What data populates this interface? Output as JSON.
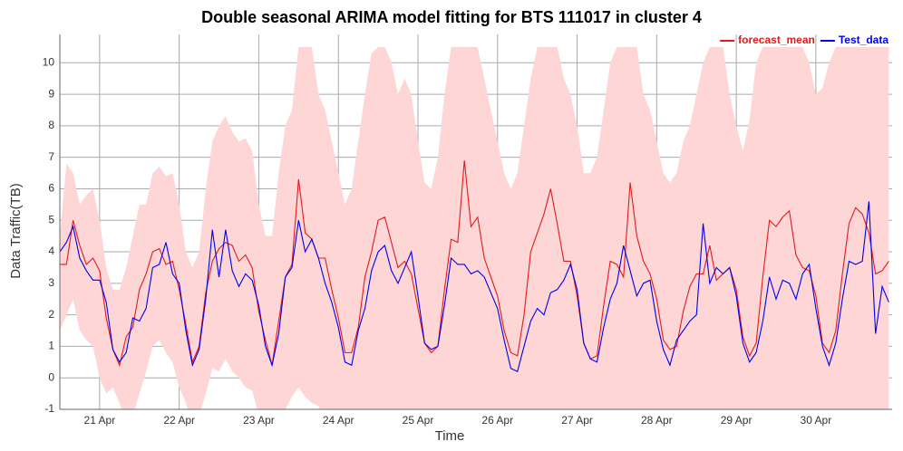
{
  "chart_data": {
    "type": "line",
    "title": "Double seasonal ARIMA model fitting for BTS 111017 in cluster 4",
    "x_label": "Time",
    "y_label": "Data Traffic(TB)",
    "x": [
      12,
      14,
      16,
      18,
      20,
      22,
      24,
      26,
      28,
      30,
      32,
      34,
      36,
      38,
      40,
      42,
      44,
      46,
      48,
      50,
      52,
      54,
      56,
      58,
      60,
      62,
      64,
      66,
      68,
      70,
      72,
      74,
      76,
      78,
      80,
      82,
      84,
      86,
      88,
      90,
      92,
      94,
      96,
      98,
      100,
      102,
      104,
      106,
      108,
      110,
      112,
      114,
      116,
      118,
      120,
      122,
      124,
      126,
      128,
      130,
      132,
      134,
      136,
      138,
      140,
      142,
      144,
      146,
      148,
      150,
      152,
      154,
      156,
      158,
      160,
      162,
      164,
      166,
      168,
      170,
      172,
      174,
      176,
      178,
      180,
      182,
      184,
      186,
      188,
      190,
      192,
      194,
      196,
      198,
      200,
      202,
      204,
      206,
      208,
      210,
      212,
      214,
      216,
      218,
      220,
      222,
      224,
      226,
      228,
      230,
      232,
      234,
      236,
      238,
      240,
      242,
      244,
      246,
      248,
      250,
      252,
      254,
      256,
      258,
      260,
      262
    ],
    "series": [
      {
        "name": "forecast_mean",
        "color": "#e31a1c",
        "values": [
          3.6,
          3.6,
          5.0,
          4.2,
          3.6,
          3.8,
          3.4,
          1.9,
          0.9,
          0.4,
          1.3,
          1.6,
          2.8,
          3.3,
          4.0,
          4.1,
          3.6,
          3.7,
          2.8,
          1.7,
          0.5,
          1.0,
          2.7,
          3.7,
          4.1,
          4.3,
          4.2,
          3.7,
          3.9,
          3.5,
          2.1,
          1.2,
          0.4,
          1.8,
          3.2,
          3.6,
          6.3,
          4.6,
          4.4,
          3.8,
          3.8,
          2.8,
          1.9,
          0.8,
          0.8,
          1.6,
          3.2,
          4.0,
          5.0,
          5.1,
          4.3,
          3.5,
          3.7,
          3.3,
          2.2,
          1.1,
          0.8,
          1.0,
          2.8,
          4.4,
          4.3,
          6.9,
          4.8,
          5.1,
          3.8,
          3.2,
          2.6,
          1.5,
          0.8,
          0.7,
          2.0,
          4.0,
          4.6,
          5.2,
          6.0,
          4.9,
          3.7,
          3.7,
          2.6,
          1.1,
          0.6,
          0.7,
          2.3,
          3.7,
          3.6,
          3.2,
          6.2,
          4.5,
          3.7,
          3.3,
          2.5,
          1.2,
          0.9,
          1.0,
          2.1,
          2.9,
          3.3,
          3.3,
          4.2,
          3.1,
          3.3,
          3.5,
          2.8,
          1.3,
          0.7,
          1.1,
          3.2,
          5.0,
          4.8,
          5.1,
          5.3,
          3.9,
          3.5,
          3.4,
          2.6,
          1.1,
          0.8,
          1.5,
          3.3,
          4.9,
          5.4,
          5.2,
          4.6,
          3.3,
          3.4,
          3.7
        ]
      },
      {
        "name": "Test_data",
        "color": "#0000ee",
        "values": [
          4.0,
          4.3,
          4.8,
          3.8,
          3.4,
          3.1,
          3.1,
          2.4,
          0.9,
          0.5,
          0.8,
          1.9,
          1.8,
          2.2,
          3.5,
          3.6,
          4.3,
          3.3,
          3.0,
          1.5,
          0.4,
          0.9,
          2.5,
          4.7,
          3.2,
          4.7,
          3.4,
          2.9,
          3.3,
          3.1,
          2.3,
          1.0,
          0.4,
          1.4,
          3.2,
          3.5,
          5.0,
          4.0,
          4.4,
          3.8,
          3.0,
          2.4,
          1.6,
          0.5,
          0.4,
          1.5,
          2.2,
          3.4,
          4.0,
          4.2,
          3.4,
          3.0,
          3.5,
          4.0,
          2.6,
          1.1,
          0.9,
          1.0,
          2.3,
          3.8,
          3.6,
          3.6,
          3.3,
          3.4,
          3.2,
          2.7,
          2.2,
          1.2,
          0.3,
          0.2,
          1.0,
          1.8,
          2.2,
          2.0,
          2.7,
          2.8,
          3.1,
          3.6,
          2.8,
          1.1,
          0.6,
          0.5,
          1.6,
          2.5,
          3.0,
          4.2,
          3.4,
          2.6,
          3.0,
          3.1,
          1.8,
          0.9,
          0.4,
          1.2,
          1.5,
          1.8,
          2.0,
          4.9,
          3.0,
          3.5,
          3.3,
          3.5,
          2.6,
          1.1,
          0.5,
          0.8,
          1.8,
          3.2,
          2.5,
          3.1,
          3.0,
          2.5,
          3.3,
          3.6,
          2.2,
          1.0,
          0.4,
          1.1,
          2.5,
          3.7,
          3.6,
          3.7,
          5.6,
          1.4,
          2.9,
          2.4
        ]
      }
    ],
    "band": {
      "color": "#ffd6d6",
      "upper": [
        4.5,
        6.8,
        6.5,
        5.5,
        5.8,
        6.0,
        5.0,
        3.5,
        2.8,
        2.8,
        3.5,
        4.5,
        5.5,
        5.5,
        6.5,
        6.7,
        6.4,
        6.5,
        5.5,
        4.0,
        3.5,
        4.0,
        6.0,
        7.5,
        8.0,
        8.3,
        7.8,
        7.5,
        7.6,
        7.2,
        5.5,
        4.5,
        4.5,
        6.5,
        8.0,
        8.5,
        10.5,
        10.5,
        10.5,
        9.0,
        8.5,
        7.5,
        6.5,
        5.5,
        6.0,
        7.5,
        9.0,
        10.3,
        10.5,
        10.5,
        10.0,
        9.0,
        9.5,
        9.0,
        7.5,
        6.2,
        6.0,
        7.0,
        9.0,
        10.5,
        10.5,
        10.5,
        10.5,
        10.5,
        9.5,
        8.5,
        7.5,
        6.5,
        6.0,
        6.5,
        8.0,
        9.5,
        10.5,
        10.5,
        10.5,
        10.5,
        9.5,
        9.0,
        8.0,
        6.5,
        6.5,
        7.0,
        8.5,
        10.0,
        10.5,
        10.5,
        10.5,
        10.5,
        9.0,
        8.5,
        7.5,
        6.5,
        6.2,
        6.5,
        7.5,
        8.0,
        9.0,
        10.0,
        10.5,
        10.5,
        10.5,
        9.0,
        8.0,
        7.2,
        8.2,
        10.0,
        10.5,
        10.5,
        10.5,
        10.5,
        10.5,
        10.5,
        10.5,
        10.0,
        9.0,
        9.2,
        10.0,
        10.5,
        10.5,
        10.5,
        10.5,
        10.5,
        10.5,
        10.5,
        10.5,
        10.5
      ],
      "lower": [
        1.5,
        2.0,
        2.5,
        1.5,
        1.2,
        1.0,
        0.0,
        -0.5,
        -0.3,
        -0.8,
        -1.5,
        -1.2,
        -0.5,
        0.2,
        1.0,
        1.2,
        0.8,
        0.5,
        -0.3,
        -0.8,
        -1.5,
        -1.2,
        -0.5,
        0.3,
        0.2,
        0.6,
        0.2,
        0.0,
        -0.3,
        -0.4,
        -1.2,
        -1.8,
        -2.0,
        -1.5,
        -1.0,
        -0.6,
        -0.3,
        -0.6,
        -0.8,
        -0.9,
        -1.3,
        -1.8,
        -2.0,
        -2.0,
        -2.0,
        -2.0,
        -2.0,
        -2.0,
        -2.0,
        -2.0,
        -2.0,
        -2.0,
        -2.0,
        -2.0,
        -2.0,
        -2.0,
        -2.0,
        -2.0,
        -2.0,
        -2.0,
        -2.0,
        -2.0,
        -2.0,
        -2.0,
        -2.0,
        -2.0,
        -2.0,
        -2.0,
        -2.0,
        -2.0,
        -2.0,
        -2.0,
        -2.0,
        -2.0,
        -2.0,
        -2.0,
        -2.0,
        -2.0,
        -2.0,
        -2.0,
        -2.0,
        -2.0,
        -2.0,
        -2.0,
        -2.0,
        -2.0,
        -2.0,
        -2.0,
        -2.0,
        -2.0,
        -2.0,
        -2.0,
        -2.0,
        -2.0,
        -2.0,
        -2.0,
        -2.0,
        -2.0,
        -2.0,
        -2.0,
        -2.0,
        -2.0,
        -2.0,
        -2.0,
        -2.0,
        -2.0,
        -2.0,
        -2.0,
        -2.0,
        -2.0,
        -2.0,
        -2.0,
        -2.0,
        -2.0,
        -2.0,
        -2.0,
        -2.0,
        -2.0,
        -2.0,
        -2.0,
        -2.0,
        -2.0,
        -2.0,
        -2.0,
        -2.0,
        -2.0
      ]
    },
    "xlim": [
      12,
      263
    ],
    "xticks": [
      {
        "value": 24,
        "label": "21 Apr"
      },
      {
        "value": 48,
        "label": "22 Apr"
      },
      {
        "value": 72,
        "label": "23 Apr"
      },
      {
        "value": 96,
        "label": "24 Apr"
      },
      {
        "value": 120,
        "label": "25 Apr"
      },
      {
        "value": 144,
        "label": "26 Apr"
      },
      {
        "value": 168,
        "label": "27 Apr"
      },
      {
        "value": 192,
        "label": "28 Apr"
      },
      {
        "value": 216,
        "label": "29 Apr"
      },
      {
        "value": 240,
        "label": "30 Apr"
      }
    ],
    "ylim": [
      -1,
      10.9
    ],
    "yticks": [
      -1,
      0,
      1,
      2,
      3,
      4,
      5,
      6,
      7,
      8,
      9,
      10
    ],
    "grid": true,
    "legend": "upper right"
  }
}
